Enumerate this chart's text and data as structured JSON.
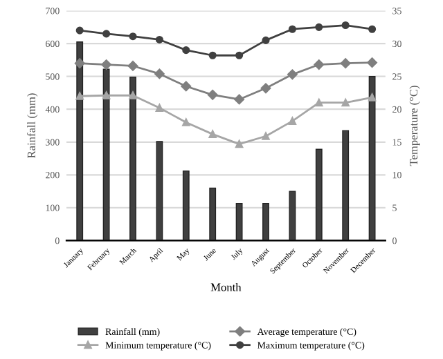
{
  "chart_data": {
    "type": "bar",
    "xlabel": "Month",
    "ylabel": "Rainfall (mm)",
    "y2label": "Temperature (°C)",
    "categories": [
      "January",
      "February",
      "March",
      "April",
      "May",
      "June",
      "July",
      "August",
      "September",
      "October",
      "November",
      "December"
    ],
    "series": [
      {
        "name": "Rainfall (mm)",
        "color": "#404040",
        "values": [
          605,
          522,
          498,
          302,
          212,
          160,
          113,
          113,
          150,
          278,
          335,
          500
        ]
      },
      {
        "name": "Average temperature (°C)",
        "type": "line",
        "axis": "y2",
        "marker": "diamond",
        "color": "#7f7f7f",
        "values": [
          27,
          26.8,
          26.6,
          25.4,
          23.5,
          22.2,
          21.5,
          23.2,
          25.3,
          26.8,
          27,
          27.1
        ]
      },
      {
        "name": "Minimum temperature (°C)",
        "type": "line",
        "axis": "y2",
        "marker": "triangle",
        "color": "#a6a6a6",
        "values": [
          22,
          22.1,
          22.1,
          20.2,
          18,
          16.2,
          14.7,
          15.9,
          18.2,
          21,
          21,
          21.8
        ]
      },
      {
        "name": "Maximum temperature (°C)",
        "type": "line",
        "axis": "y2",
        "marker": "circle",
        "color": "#404040",
        "values": [
          32,
          31.5,
          31.1,
          30.6,
          29,
          28.2,
          28.2,
          30.5,
          32.2,
          32.5,
          32.8,
          32.2
        ]
      }
    ],
    "ylim": [
      0,
      700
    ],
    "yticks": [
      0,
      100,
      200,
      300,
      400,
      500,
      600,
      700
    ],
    "y2lim": [
      0,
      35
    ],
    "y2ticks": [
      0,
      5,
      10,
      15,
      20,
      25,
      30,
      35
    ],
    "grid": "y",
    "legend": "bottom"
  }
}
